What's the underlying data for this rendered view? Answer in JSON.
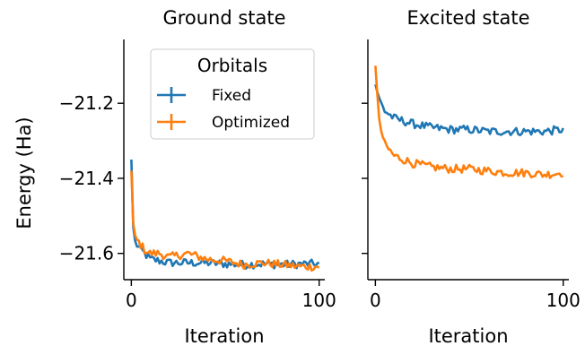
{
  "chart_data": {
    "type": "line",
    "shared_ylabel": "Energy (Ha)",
    "ylim": [
      -21.67,
      -21.03
    ],
    "yticks": [
      -21.6,
      -21.4,
      -21.2
    ],
    "ytick_labels": [
      "−21.6",
      "−21.4",
      "−21.2"
    ],
    "panels": [
      {
        "title": "Ground state",
        "xlabel": "Iteration",
        "xlim": [
          -4,
          103
        ],
        "xticks": [
          0,
          100
        ],
        "xtick_labels": [
          "0",
          "100"
        ],
        "legend": {
          "title": "Orbitals",
          "placement": "top-right",
          "entries": [
            "Fixed",
            "Optimized"
          ]
        },
        "series": [
          {
            "name": "Fixed",
            "color": "#1f77b4",
            "anchors": [
              [
                0,
                -21.35
              ],
              [
                1,
                -21.53
              ],
              [
                2,
                -21.57
              ],
              [
                4,
                -21.585
              ],
              [
                7,
                -21.6
              ],
              [
                10,
                -21.615
              ],
              [
                15,
                -21.62
              ],
              [
                20,
                -21.625
              ],
              [
                30,
                -21.625
              ],
              [
                40,
                -21.625
              ],
              [
                50,
                -21.628
              ],
              [
                60,
                -21.63
              ],
              [
                70,
                -21.628
              ],
              [
                80,
                -21.63
              ],
              [
                90,
                -21.628
              ],
              [
                100,
                -21.628
              ]
            ]
          },
          {
            "name": "Optimized",
            "color": "#ff7f0e",
            "anchors": [
              [
                0,
                -21.38
              ],
              [
                1,
                -21.52
              ],
              [
                2,
                -21.56
              ],
              [
                4,
                -21.57
              ],
              [
                7,
                -21.59
              ],
              [
                10,
                -21.6
              ],
              [
                15,
                -21.6
              ],
              [
                20,
                -21.61
              ],
              [
                30,
                -21.6
              ],
              [
                40,
                -21.615
              ],
              [
                50,
                -21.62
              ],
              [
                60,
                -21.63
              ],
              [
                70,
                -21.625
              ],
              [
                80,
                -21.63
              ],
              [
                90,
                -21.635
              ],
              [
                100,
                -21.635
              ]
            ]
          }
        ]
      },
      {
        "title": "Excited state",
        "xlabel": "Iteration",
        "xlim": [
          -4,
          103
        ],
        "xticks": [
          0,
          100
        ],
        "xtick_labels": [
          "0",
          "100"
        ],
        "series": [
          {
            "name": "Fixed",
            "color": "#1f77b4",
            "anchors": [
              [
                0,
                -21.15
              ],
              [
                2,
                -21.19
              ],
              [
                5,
                -21.22
              ],
              [
                10,
                -21.24
              ],
              [
                20,
                -21.255
              ],
              [
                30,
                -21.265
              ],
              [
                40,
                -21.27
              ],
              [
                50,
                -21.27
              ],
              [
                60,
                -21.275
              ],
              [
                70,
                -21.275
              ],
              [
                80,
                -21.275
              ],
              [
                90,
                -21.275
              ],
              [
                100,
                -21.27
              ]
            ]
          },
          {
            "name": "Optimized",
            "color": "#ff7f0e",
            "anchors": [
              [
                0,
                -21.1
              ],
              [
                2,
                -21.25
              ],
              [
                5,
                -21.31
              ],
              [
                10,
                -21.34
              ],
              [
                20,
                -21.36
              ],
              [
                30,
                -21.37
              ],
              [
                40,
                -21.375
              ],
              [
                50,
                -21.375
              ],
              [
                60,
                -21.38
              ],
              [
                70,
                -21.385
              ],
              [
                80,
                -21.385
              ],
              [
                90,
                -21.39
              ],
              [
                100,
                -21.385
              ]
            ]
          }
        ]
      }
    ]
  }
}
